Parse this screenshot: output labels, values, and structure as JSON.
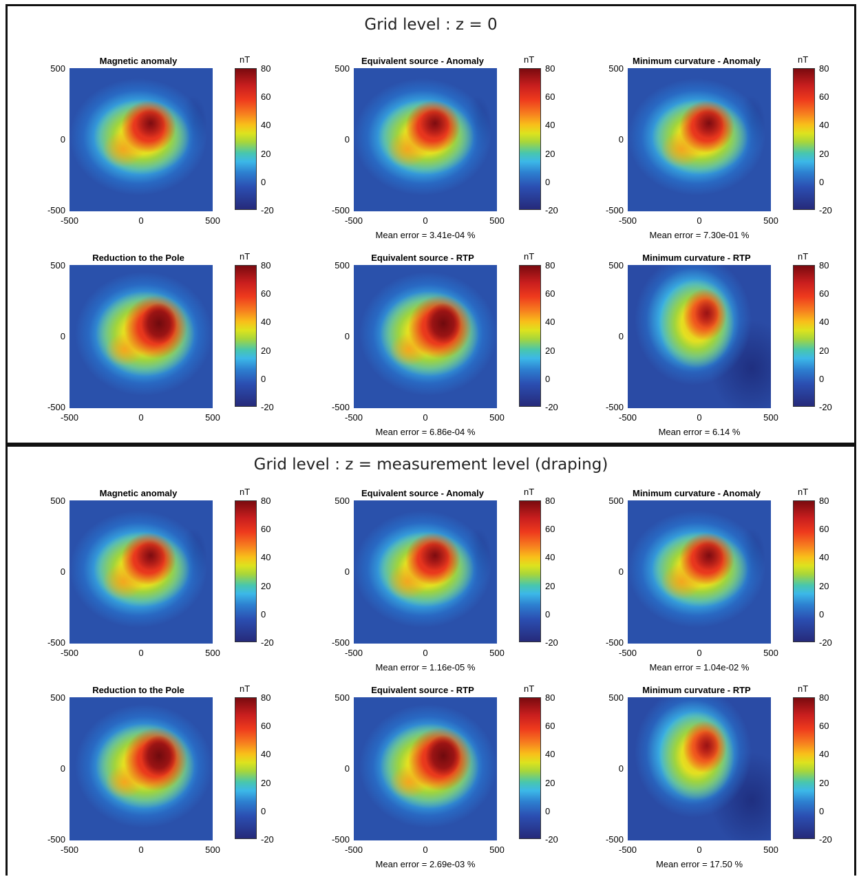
{
  "sections": [
    {
      "title": "Grid level : z  = 0",
      "panels": [
        {
          "title": "Magnetic anomaly",
          "error": "",
          "variant": "anom"
        },
        {
          "title": "Equivalent source - Anomaly",
          "error": "Mean error = 3.41e-04 %",
          "variant": "anom"
        },
        {
          "title": "Minimum curvature - Anomaly",
          "error": "Mean error = 7.30e-01 %",
          "variant": "anom"
        },
        {
          "title": "Reduction to the Pole",
          "error": "",
          "variant": "rtp"
        },
        {
          "title": "Equivalent source - RTP",
          "error": "Mean error = 6.86e-04 %",
          "variant": "rtp"
        },
        {
          "title": "Minimum curvature - RTP",
          "error": "Mean error = 6.14 %",
          "variant": "mcrtp"
        }
      ]
    },
    {
      "title": "Grid level : z  = measurement level (draping)",
      "panels": [
        {
          "title": "Magnetic anomaly",
          "error": "",
          "variant": "anom"
        },
        {
          "title": "Equivalent source - Anomaly",
          "error": "Mean error = 1.16e-05 %",
          "variant": "anom"
        },
        {
          "title": "Minimum curvature - Anomaly",
          "error": "Mean error = 1.04e-02 %",
          "variant": "anom"
        },
        {
          "title": "Reduction to the Pole",
          "error": "",
          "variant": "rtp"
        },
        {
          "title": "Equivalent source - RTP",
          "error": "Mean error = 2.69e-03 %",
          "variant": "rtp"
        },
        {
          "title": "Minimum curvature - RTP",
          "error": "Mean error = 17.50 %",
          "variant": "mcrtp"
        }
      ]
    }
  ],
  "chart_data": {
    "type": "heatmap",
    "x_ticks": [
      "-500",
      "0",
      "500"
    ],
    "y_ticks": [
      "500",
      "0",
      "-500"
    ],
    "xlim": [
      -500,
      500
    ],
    "ylim": [
      -500,
      500
    ],
    "colorbar": {
      "unit": "nT",
      "ticks": [
        "80",
        "60",
        "40",
        "20",
        "0",
        "-20"
      ],
      "range": [
        -20,
        80
      ],
      "colormap": "jet"
    }
  }
}
